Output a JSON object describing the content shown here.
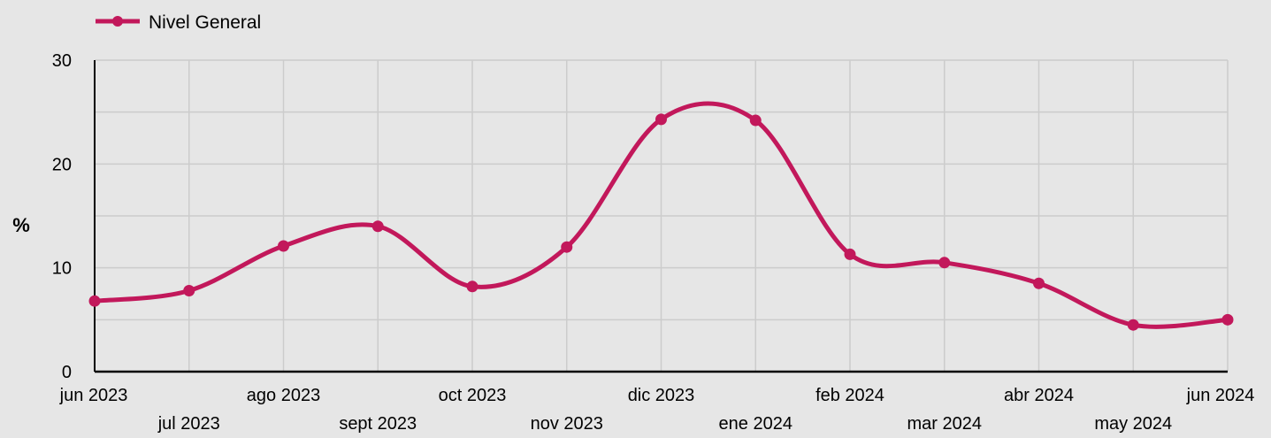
{
  "chart_data": {
    "type": "line",
    "title": "",
    "xlabel": "",
    "ylabel": "%",
    "ylim": [
      0,
      30
    ],
    "yticks": [
      0,
      10,
      20,
      30
    ],
    "grid": true,
    "legend_position": "top-left",
    "categories": [
      "jun 2023",
      "jul 2023",
      "ago 2023",
      "sept 2023",
      "oct 2023",
      "nov 2023",
      "dic 2023",
      "ene 2024",
      "feb 2024",
      "mar 2024",
      "abr 2024",
      "may 2024",
      "jun 2024"
    ],
    "series": [
      {
        "name": "Nivel General",
        "color": "#c2185b",
        "values": [
          6.8,
          7.8,
          12.1,
          14.0,
          8.2,
          12.0,
          24.3,
          24.2,
          11.3,
          10.5,
          8.5,
          4.5,
          5.0
        ]
      }
    ]
  }
}
